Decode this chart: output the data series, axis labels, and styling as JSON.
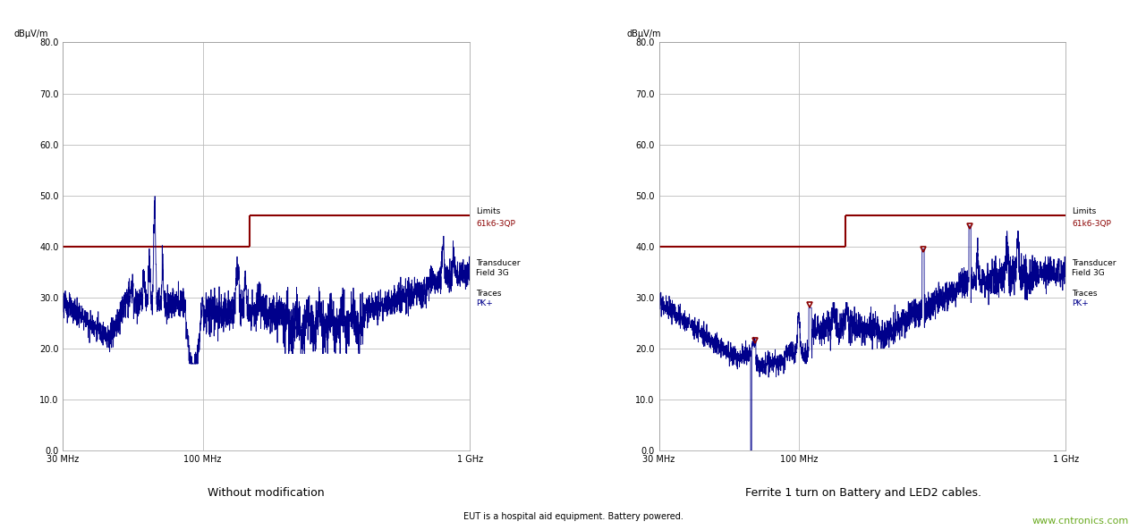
{
  "fig_width": 12.81,
  "fig_height": 5.93,
  "background_color": "#ffffff",
  "ylabel": "dBμV/m",
  "xmin_log": 7.477,
  "xmax_log": 9.0,
  "ymin": 0.0,
  "ymax": 80.0,
  "yticks": [
    0.0,
    10.0,
    20.0,
    30.0,
    40.0,
    50.0,
    60.0,
    70.0,
    80.0
  ],
  "xtick_labels": [
    "30 MHz",
    "100 MHz",
    "1 GHz"
  ],
  "xtick_positions_log": [
    7.477,
    8.0,
    9.0
  ],
  "limit_color": "#8b0000",
  "signal_color": "#00008b",
  "grid_color": "#bbbbbb",
  "legend_red_color": "#8b0000",
  "legend_blue_color": "#00008b",
  "subtitle1": "Without modification",
  "subtitle2": "Ferrite 1 turn on Battery and LED2 cables.",
  "footnote": "EUT is a hospital aid equipment. Battery powered.",
  "watermark": "www.cntronics.com",
  "watermark_color": "#6aaa20",
  "limit_x_break_log": 8.176,
  "limit_y_low": 40.0,
  "limit_y_high": 46.0,
  "markers2": [
    {
      "x_log": 7.838,
      "y": 21.5
    },
    {
      "x_log": 8.041,
      "y": 28.5
    },
    {
      "x_log": 8.465,
      "y": 39.5
    },
    {
      "x_log": 8.64,
      "y": 44.0
    }
  ]
}
